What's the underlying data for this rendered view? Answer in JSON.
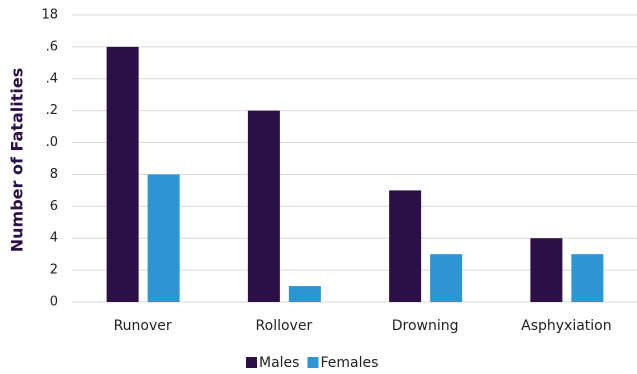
{
  "chart_data": {
    "type": "bar",
    "y_label": "Number of Fatalities",
    "categories": [
      "Runover",
      "Rollover",
      "Drowning",
      "Asphyxiation"
    ],
    "series": [
      {
        "name": "Males",
        "color": "#2b0f45",
        "values": [
          16,
          12,
          7,
          4
        ]
      },
      {
        "name": "Females",
        "color": "#2e95d3",
        "values": [
          8,
          1,
          3,
          3
        ]
      }
    ],
    "ylim": [
      0,
      18
    ],
    "yticks": [
      0,
      2,
      4,
      6,
      8,
      {
        "value": 10,
        "label": ".0"
      },
      {
        "value": 12,
        "label": ".2"
      },
      {
        "value": 14,
        "label": ".4"
      },
      {
        "value": 16,
        "label": ".6"
      },
      18
    ],
    "grid": true
  }
}
